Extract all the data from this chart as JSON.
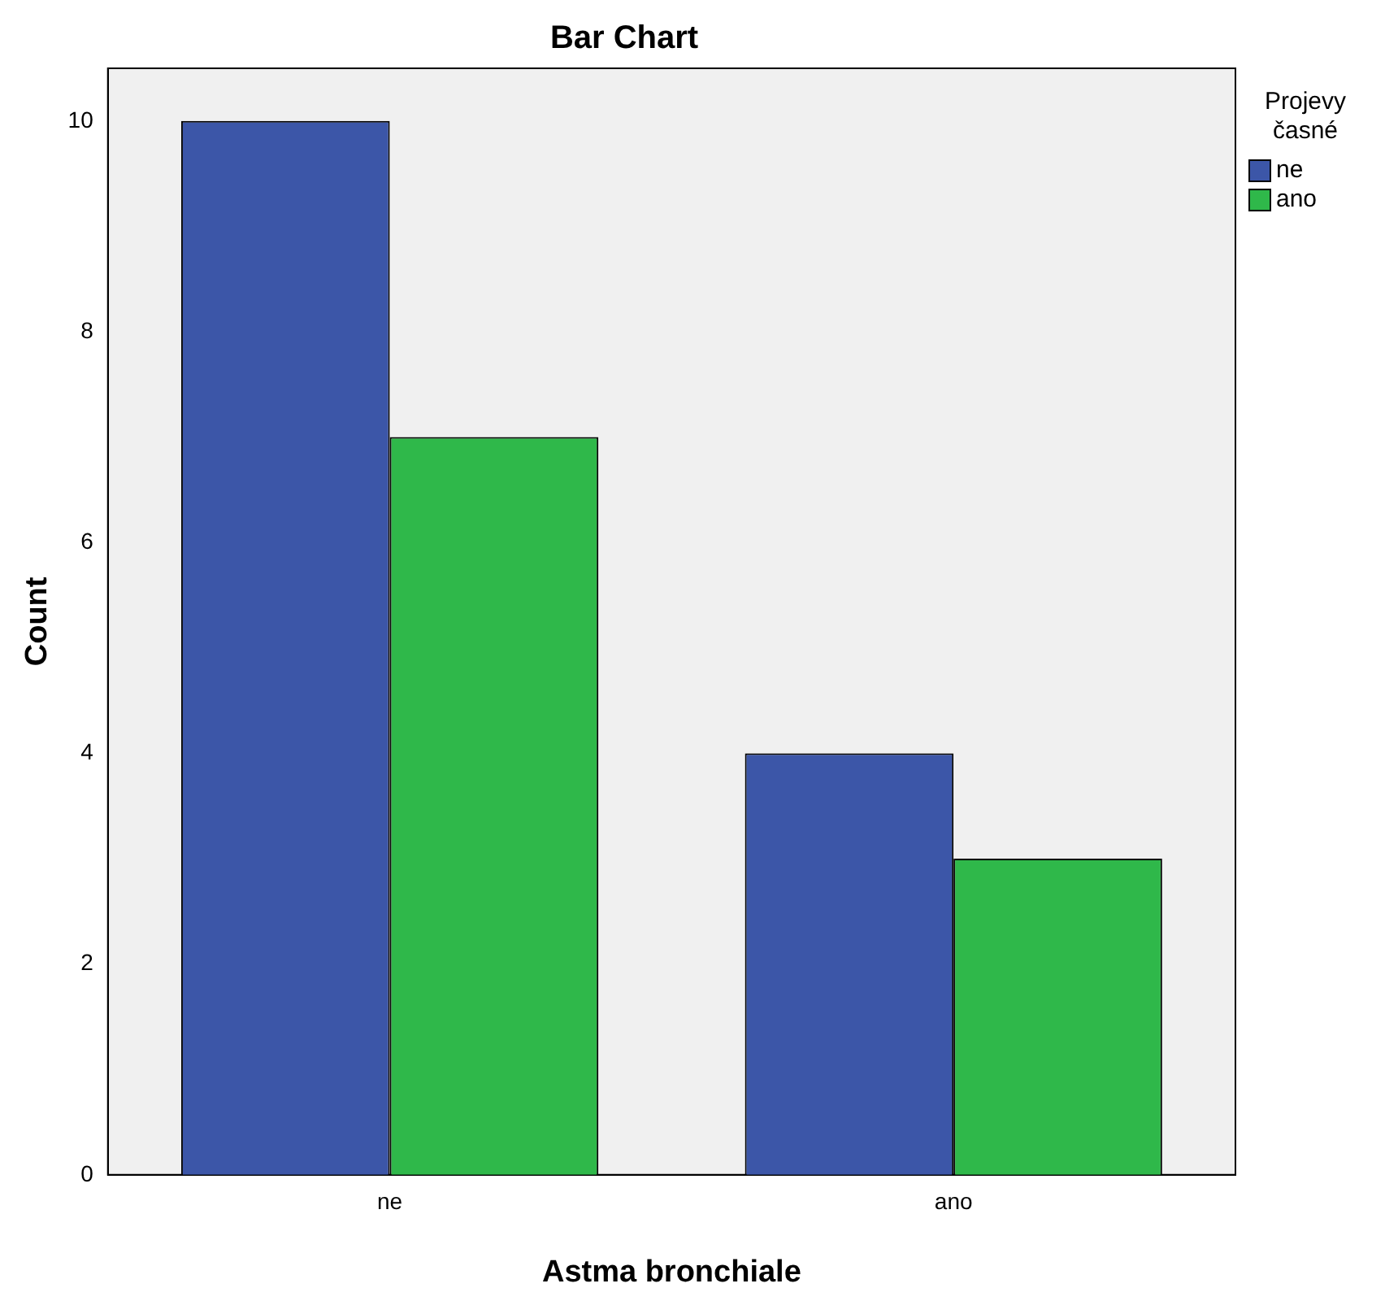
{
  "chart_data": {
    "type": "bar",
    "title": "Bar Chart",
    "xlabel": "Astma bronchiale",
    "ylabel": "Count",
    "legend_title": "Projevy časné",
    "categories": [
      "ne",
      "ano"
    ],
    "series": [
      {
        "name": "ne",
        "color": "#3c56a8",
        "values": [
          10,
          4
        ]
      },
      {
        "name": "ano",
        "color": "#2fb84a",
        "values": [
          7,
          3
        ]
      }
    ],
    "ylim": [
      0,
      10.5
    ],
    "yticks": [
      0,
      2,
      4,
      6,
      8,
      10
    ],
    "grid": false,
    "legend": "right"
  }
}
